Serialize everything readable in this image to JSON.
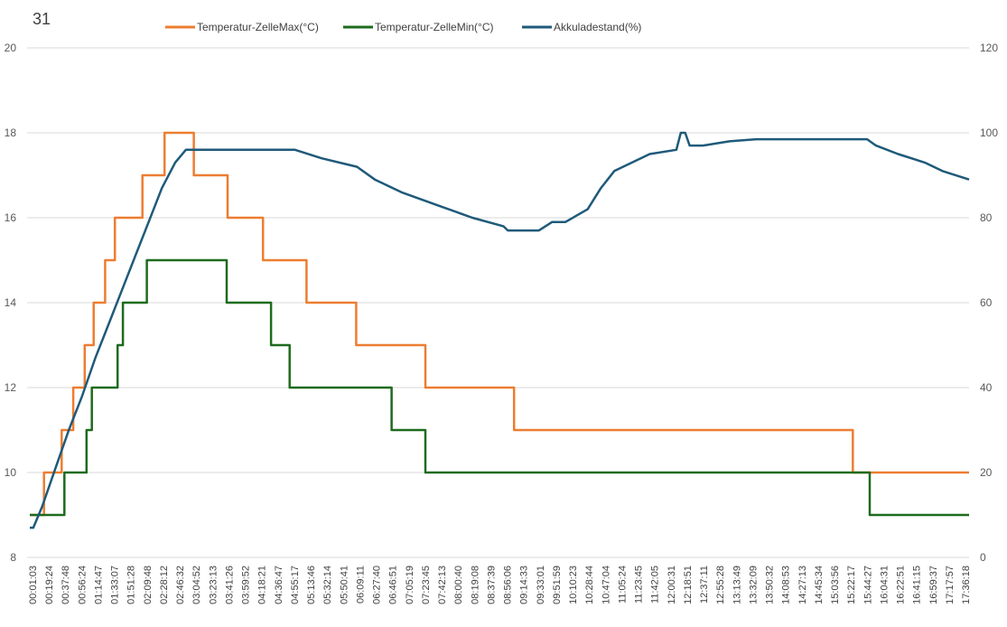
{
  "chart_data": {
    "type": "line",
    "title": "31",
    "legend_position": "top",
    "grid": true,
    "x_tick_labels": [
      "00:01:03",
      "00:19:24",
      "00:37:48",
      "00:56:24",
      "01:14:47",
      "01:33:07",
      "01:51:28",
      "02:09:48",
      "02:28:12",
      "02:46:32",
      "03:04:52",
      "03:23:13",
      "03:41:26",
      "03:59:52",
      "04:18:21",
      "04:36:47",
      "04:55:17",
      "05:13:46",
      "05:32:14",
      "05:50:41",
      "06:09:11",
      "06:27:40",
      "06:46:51",
      "07:05:19",
      "07:23:45",
      "07:42:13",
      "08:00:40",
      "08:19:08",
      "08:37:39",
      "08:56:06",
      "09:14:33",
      "09:33:01",
      "09:51:59",
      "10:10:23",
      "10:28:44",
      "10:47:04",
      "11:05:24",
      "11:23:45",
      "11:42:05",
      "12:00:31",
      "12:18:51",
      "12:37:11",
      "12:55:28",
      "13:13:49",
      "13:32:09",
      "13:50:32",
      "14:08:53",
      "14:27:13",
      "14:45:34",
      "15:03:56",
      "15:22:17",
      "15:44:27",
      "16:04:31",
      "16:22:51",
      "16:41:15",
      "16:59:37",
      "17:17:57",
      "17:36:18"
    ],
    "y_left": {
      "ticks": [
        "8",
        "10",
        "12",
        "14",
        "16",
        "18",
        "20"
      ],
      "min": 8,
      "max": 20
    },
    "y_right": {
      "ticks": [
        "0",
        "20",
        "40",
        "60",
        "80",
        "100",
        "120"
      ],
      "min": 0,
      "max": 120
    },
    "series": [
      {
        "name": "Temperatur-ZelleMax(°C)",
        "axis": "left",
        "color": "#ED7D31",
        "step": true,
        "points": [
          [
            "00:01:03",
            9
          ],
          [
            "00:17:00",
            10
          ],
          [
            "00:37:00",
            11
          ],
          [
            "00:50:00",
            12
          ],
          [
            "01:03:00",
            13
          ],
          [
            "01:13:00",
            14
          ],
          [
            "01:26:00",
            15
          ],
          [
            "01:37:00",
            16
          ],
          [
            "02:08:00",
            17
          ],
          [
            "02:33:00",
            18
          ],
          [
            "03:06:00",
            17
          ],
          [
            "03:44:00",
            16
          ],
          [
            "04:24:00",
            15
          ],
          [
            "05:13:00",
            14
          ],
          [
            "06:09:00",
            13
          ],
          [
            "07:27:00",
            12
          ],
          [
            "09:07:00",
            11
          ],
          [
            "15:29:00",
            10
          ],
          [
            "17:40:00",
            10
          ]
        ]
      },
      {
        "name": "Temperatur-ZelleMin(°C)",
        "axis": "left",
        "color": "#1E6B1E",
        "step": true,
        "points": [
          [
            "00:01:03",
            9
          ],
          [
            "00:40:00",
            10
          ],
          [
            "01:05:00",
            11
          ],
          [
            "01:11:00",
            12
          ],
          [
            "01:40:00",
            13
          ],
          [
            "01:46:00",
            14
          ],
          [
            "02:13:00",
            15
          ],
          [
            "03:43:00",
            14
          ],
          [
            "04:33:00",
            13
          ],
          [
            "04:54:00",
            12
          ],
          [
            "06:49:00",
            11
          ],
          [
            "07:27:00",
            10
          ],
          [
            "15:48:00",
            9
          ],
          [
            "17:40:00",
            9
          ]
        ]
      },
      {
        "name": "Akkuladestand(%)",
        "axis": "right",
        "color": "#1F5A7A",
        "step": false,
        "points": [
          [
            "00:01:03",
            7
          ],
          [
            "00:05:00",
            7
          ],
          [
            "00:15:00",
            12
          ],
          [
            "00:30:00",
            21
          ],
          [
            "00:45:00",
            30
          ],
          [
            "01:00:00",
            38
          ],
          [
            "01:15:00",
            47
          ],
          [
            "01:30:00",
            55
          ],
          [
            "01:45:00",
            63
          ],
          [
            "02:00:00",
            71
          ],
          [
            "02:15:00",
            79
          ],
          [
            "02:30:00",
            87
          ],
          [
            "02:45:00",
            93
          ],
          [
            "02:57:00",
            96
          ],
          [
            "03:05:00",
            96
          ],
          [
            "05:00:00",
            96
          ],
          [
            "05:30:00",
            94
          ],
          [
            "06:10:00",
            92
          ],
          [
            "06:30:00",
            89
          ],
          [
            "07:00:00",
            86
          ],
          [
            "07:40:00",
            83
          ],
          [
            "08:20:00",
            80
          ],
          [
            "08:55:00",
            78
          ],
          [
            "09:00:00",
            77
          ],
          [
            "09:35:00",
            77
          ],
          [
            "09:50:00",
            79
          ],
          [
            "10:05:00",
            79
          ],
          [
            "10:30:00",
            82
          ],
          [
            "10:45:00",
            87
          ],
          [
            "11:00:00",
            91
          ],
          [
            "11:20:00",
            93
          ],
          [
            "11:40:00",
            95
          ],
          [
            "12:10:00",
            96
          ],
          [
            "12:15:00",
            100
          ],
          [
            "12:20:00",
            100
          ],
          [
            "12:25:00",
            97
          ],
          [
            "12:40:00",
            97
          ],
          [
            "13:10:00",
            98
          ],
          [
            "13:40:00",
            98.5
          ],
          [
            "15:35:00",
            98.5
          ],
          [
            "15:45:00",
            98.5
          ],
          [
            "15:55:00",
            97
          ],
          [
            "16:20:00",
            95
          ],
          [
            "16:50:00",
            93
          ],
          [
            "17:10:00",
            91
          ],
          [
            "17:40:00",
            89
          ]
        ]
      }
    ]
  }
}
